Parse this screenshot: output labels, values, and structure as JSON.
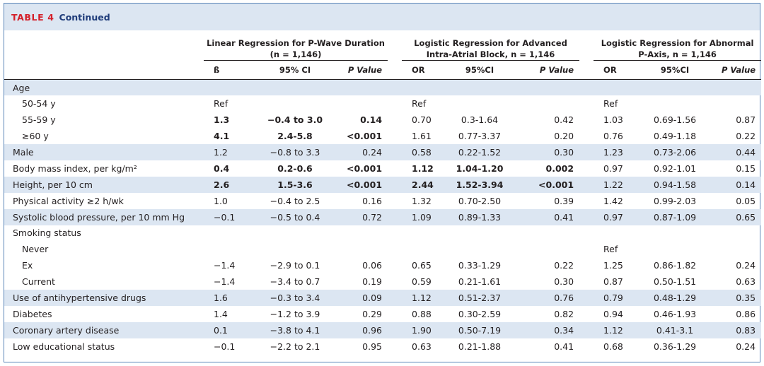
{
  "caption": {
    "label": "TABLE 4",
    "continued": "Continued"
  },
  "groups": [
    {
      "line1": "Linear Regression for P-Wave Duration",
      "line2": "(n = 1,146)"
    },
    {
      "line1": "Logistic Regression for Advanced",
      "line2": "Intra-Atrial Block, n = 1,146"
    },
    {
      "line1": "Logistic Regression for Abnormal",
      "line2": "P-Axis, n = 1,146"
    }
  ],
  "subheaders": [
    "ß",
    "95% CI",
    "P Value",
    "OR",
    "95%CI",
    "P Value",
    "OR",
    "95%CI",
    "P Value"
  ],
  "rows": [
    {
      "label": "Age",
      "indent": false,
      "shade": true,
      "cells": [
        "",
        "",
        "",
        "",
        "",
        "",
        "",
        "",
        ""
      ],
      "bold": []
    },
    {
      "label": "50-54 y",
      "indent": true,
      "shade": false,
      "cells": [
        "Ref",
        "",
        "",
        "Ref",
        "",
        "",
        "Ref",
        "",
        ""
      ],
      "bold": []
    },
    {
      "label": "55-59 y",
      "indent": true,
      "shade": false,
      "cells": [
        "1.3",
        "−0.4 to 3.0",
        "0.14",
        "0.70",
        "0.3-1.64",
        "0.42",
        "1.03",
        "0.69-1.56",
        "0.87"
      ],
      "bold": [
        0,
        1,
        2
      ]
    },
    {
      "label": "≥60 y",
      "indent": true,
      "shade": false,
      "cells": [
        "4.1",
        "2.4-5.8",
        "<0.001",
        "1.61",
        "0.77-3.37",
        "0.20",
        "0.76",
        "0.49-1.18",
        "0.22"
      ],
      "bold": [
        0,
        1,
        2
      ]
    },
    {
      "label": "Male",
      "indent": false,
      "shade": true,
      "cells": [
        "1.2",
        "−0.8 to 3.3",
        "0.24",
        "0.58",
        "0.22-1.52",
        "0.30",
        "1.23",
        "0.73-2.06",
        "0.44"
      ],
      "bold": []
    },
    {
      "label": "Body mass index, per kg/m²",
      "indent": false,
      "shade": false,
      "cells": [
        "0.4",
        "0.2-0.6",
        "<0.001",
        "1.12",
        "1.04-1.20",
        "0.002",
        "0.97",
        "0.92-1.01",
        "0.15"
      ],
      "bold": [
        0,
        1,
        2,
        3,
        4,
        5
      ]
    },
    {
      "label": "Height, per 10 cm",
      "indent": false,
      "shade": true,
      "cells": [
        "2.6",
        "1.5-3.6",
        "<0.001",
        "2.44",
        "1.52-3.94",
        "<0.001",
        "1.22",
        "0.94-1.58",
        "0.14"
      ],
      "bold": [
        0,
        1,
        2,
        3,
        4,
        5
      ]
    },
    {
      "label": "Physical activity ≥2 h/wk",
      "indent": false,
      "shade": false,
      "cells": [
        "1.0",
        "−0.4 to 2.5",
        "0.16",
        "1.32",
        "0.70-2.50",
        "0.39",
        "1.42",
        "0.99-2.03",
        "0.05"
      ],
      "bold": []
    },
    {
      "label": "Systolic blood pressure, per 10 mm Hg",
      "indent": false,
      "shade": true,
      "cells": [
        "−0.1",
        "−0.5 to 0.4",
        "0.72",
        "1.09",
        "0.89-1.33",
        "0.41",
        "0.97",
        "0.87-1.09",
        "0.65"
      ],
      "bold": []
    },
    {
      "label": "Smoking status",
      "indent": false,
      "shade": false,
      "cells": [
        "",
        "",
        "",
        "",
        "",
        "",
        "",
        "",
        ""
      ],
      "bold": []
    },
    {
      "label": "Never",
      "indent": true,
      "shade": false,
      "cells": [
        "",
        "",
        "",
        "",
        "",
        "",
        "Ref",
        "",
        ""
      ],
      "bold": []
    },
    {
      "label": "Ex",
      "indent": true,
      "shade": false,
      "cells": [
        "−1.4",
        "−2.9 to 0.1",
        "0.06",
        "0.65",
        "0.33-1.29",
        "0.22",
        "1.25",
        "0.86-1.82",
        "0.24"
      ],
      "bold": []
    },
    {
      "label": "Current",
      "indent": true,
      "shade": false,
      "cells": [
        "−1.4",
        "−3.4 to 0.7",
        "0.19",
        "0.59",
        "0.21-1.61",
        "0.30",
        "0.87",
        "0.50-1.51",
        "0.63"
      ],
      "bold": []
    },
    {
      "label": "Use of antihypertensive drugs",
      "indent": false,
      "shade": true,
      "cells": [
        "1.6",
        "−0.3 to 3.4",
        "0.09",
        "1.12",
        "0.51-2.37",
        "0.76",
        "0.79",
        "0.48-1.29",
        "0.35"
      ],
      "bold": []
    },
    {
      "label": "Diabetes",
      "indent": false,
      "shade": false,
      "cells": [
        "1.4",
        "−1.2 to 3.9",
        "0.29",
        "0.88",
        "0.30-2.59",
        "0.82",
        "0.94",
        "0.46-1.93",
        "0.86"
      ],
      "bold": []
    },
    {
      "label": "Coronary artery disease",
      "indent": false,
      "shade": true,
      "cells": [
        "0.1",
        "−3.8 to 4.1",
        "0.96",
        "1.90",
        "0.50-7.19",
        "0.34",
        "1.12",
        "0.41-3.1",
        "0.83"
      ],
      "bold": []
    },
    {
      "label": "Low educational status",
      "indent": false,
      "shade": false,
      "cells": [
        "−0.1",
        "−2.2 to 2.1",
        "0.95",
        "0.63",
        "0.21-1.88",
        "0.41",
        "0.68",
        "0.36-1.29",
        "0.24"
      ],
      "bold": []
    }
  ]
}
